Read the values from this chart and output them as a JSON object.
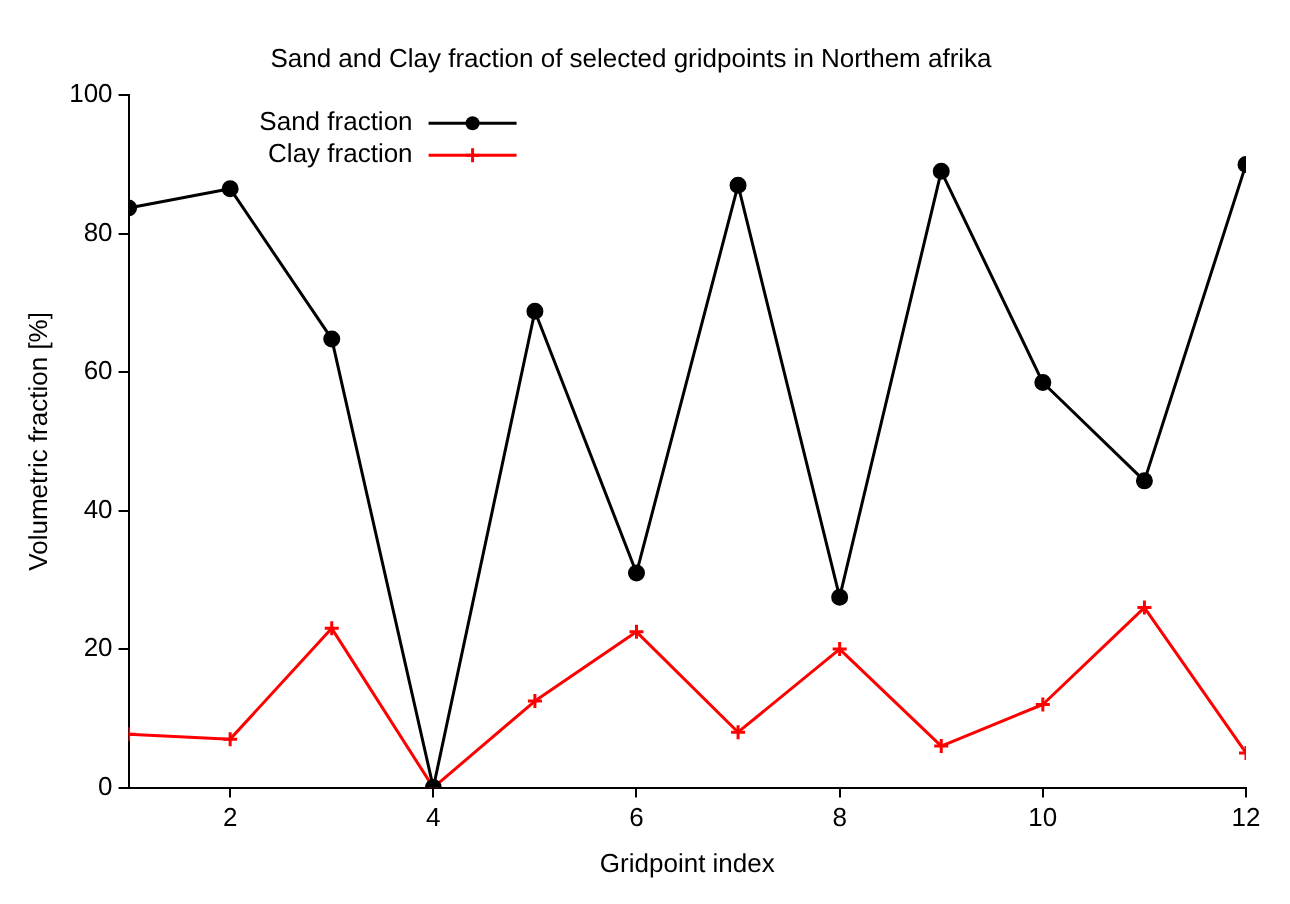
{
  "chart_data": {
    "type": "line",
    "title": "Sand and Clay fraction of selected gridpoints in Northem afrika",
    "xlabel": "Gridpoint index",
    "ylabel": "Volumetric fraction [%]",
    "x": [
      1,
      2,
      3,
      4,
      5,
      6,
      7,
      8,
      9,
      10,
      11,
      12
    ],
    "xlim": [
      1,
      12
    ],
    "xticks": [
      2,
      4,
      6,
      8,
      10,
      12
    ],
    "ylim": [
      0,
      100
    ],
    "yticks": [
      0,
      20,
      40,
      60,
      80,
      100
    ],
    "grid": false,
    "legend": "top left",
    "series": [
      {
        "name": "Sand fraction",
        "color": "#000000",
        "marker": "circle",
        "values": [
          83.7,
          86.5,
          64.8,
          0,
          68.8,
          31,
          87,
          27.5,
          89,
          58.5,
          44.3,
          90
        ]
      },
      {
        "name": "Clay fraction",
        "color": "#ff0000",
        "marker": "cross",
        "values": [
          7.7,
          7,
          23,
          0,
          12.5,
          22.5,
          8,
          20,
          6,
          12,
          26,
          5
        ]
      }
    ]
  }
}
